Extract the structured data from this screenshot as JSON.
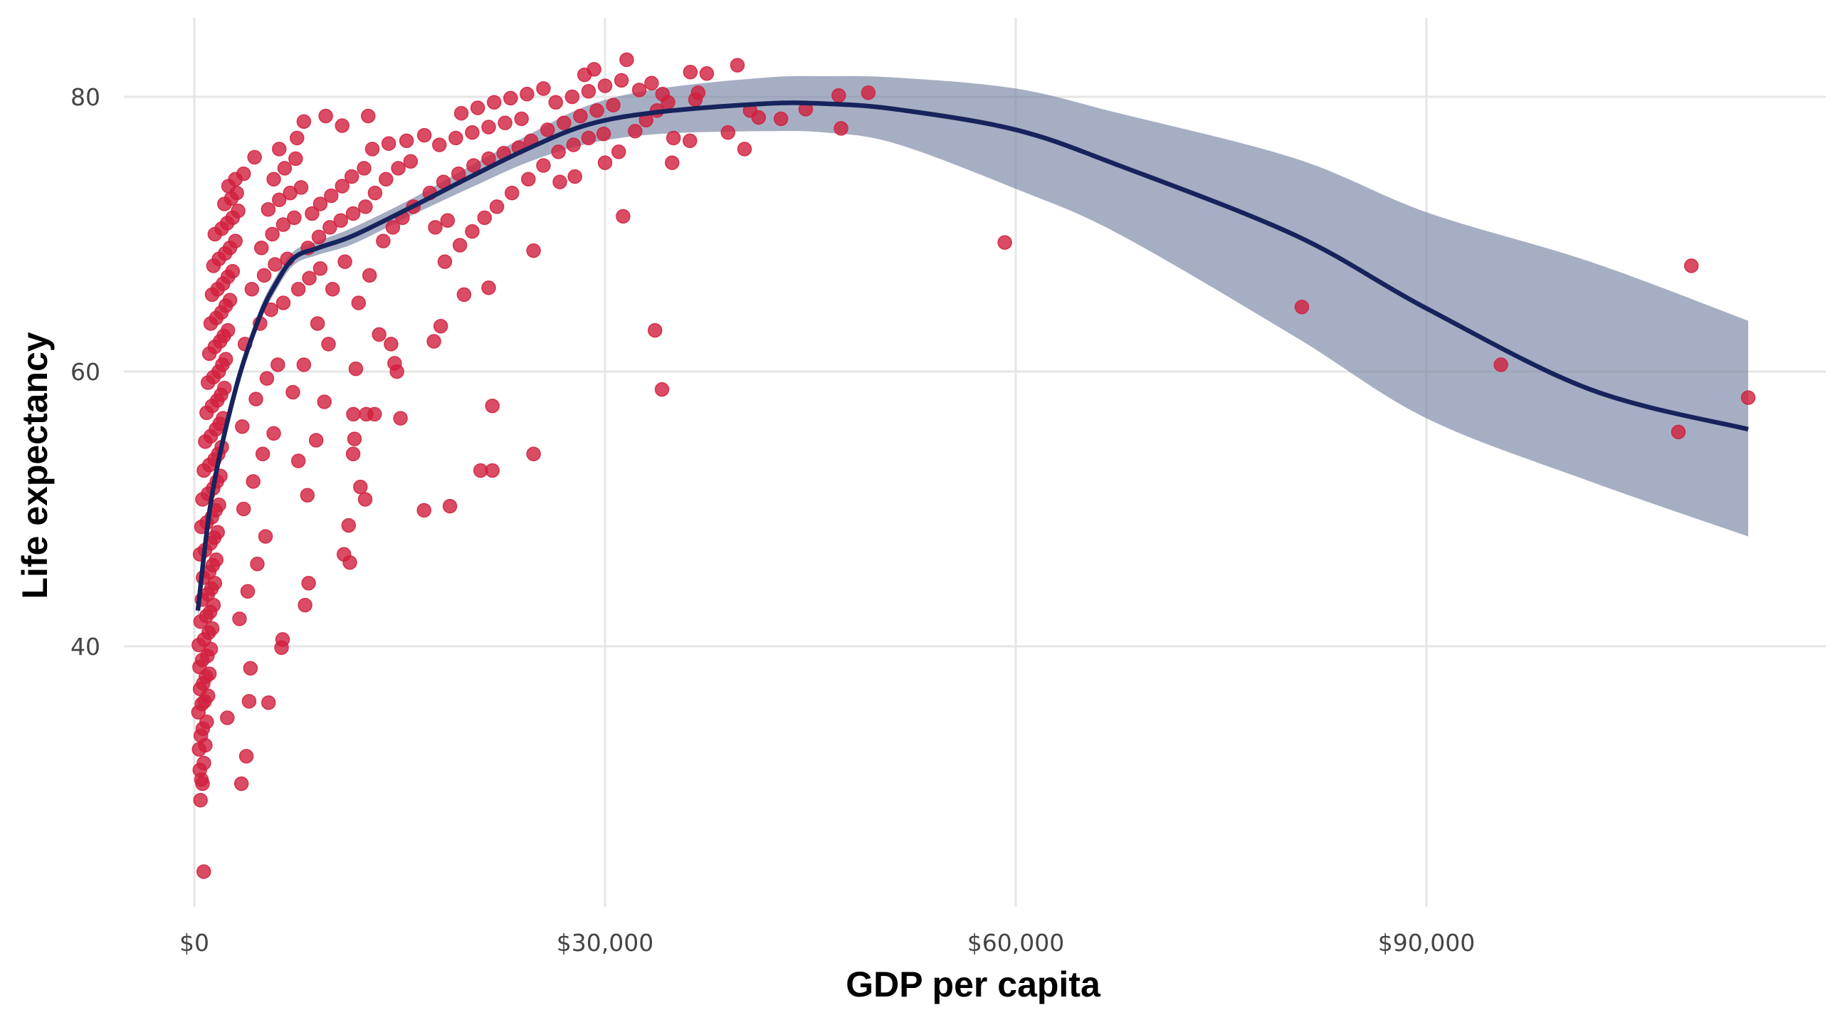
{
  "chart_data": {
    "type": "scatter",
    "title": "",
    "xlabel": "GDP per capita",
    "ylabel": "Life expectancy",
    "xlim": [
      -3500,
      120000
    ],
    "ylim": [
      19,
      85
    ],
    "grid": true,
    "x_ticks": [
      {
        "value": 0,
        "label": "$0"
      },
      {
        "value": 30000,
        "label": "$30,000"
      },
      {
        "value": 60000,
        "label": "$60,000"
      },
      {
        "value": 90000,
        "label": "$90,000"
      }
    ],
    "y_ticks": [
      {
        "value": 40,
        "label": "40"
      },
      {
        "value": 60,
        "label": "60"
      },
      {
        "value": 80,
        "label": "80"
      }
    ],
    "colors": {
      "points": "#D11F3D",
      "smooth_line": "#17235C",
      "smooth_band": "#7683A3",
      "grid": "#E6E6E6"
    },
    "points": [
      [
        690,
        23.6
      ],
      [
        450,
        28.8
      ],
      [
        600,
        30.0
      ],
      [
        520,
        30.3
      ],
      [
        400,
        31.0
      ],
      [
        700,
        31.5
      ],
      [
        350,
        32.5
      ],
      [
        800,
        32.8
      ],
      [
        480,
        33.5
      ],
      [
        620,
        34.0
      ],
      [
        900,
        34.5
      ],
      [
        300,
        35.2
      ],
      [
        550,
        35.8
      ],
      [
        750,
        36.0
      ],
      [
        1000,
        36.4
      ],
      [
        420,
        36.9
      ],
      [
        650,
        37.3
      ],
      [
        850,
        37.8
      ],
      [
        1100,
        38.0
      ],
      [
        380,
        38.5
      ],
      [
        580,
        39.0
      ],
      [
        950,
        39.3
      ],
      [
        1200,
        39.8
      ],
      [
        330,
        40.1
      ],
      [
        720,
        40.5
      ],
      [
        1050,
        41.0
      ],
      [
        1300,
        41.3
      ],
      [
        460,
        41.8
      ],
      [
        880,
        42.2
      ],
      [
        1150,
        42.5
      ],
      [
        1400,
        43.0
      ],
      [
        560,
        43.4
      ],
      [
        990,
        43.8
      ],
      [
        1250,
        44.2
      ],
      [
        1500,
        44.6
      ],
      [
        640,
        45.0
      ],
      [
        1080,
        45.4
      ],
      [
        1350,
        45.9
      ],
      [
        1600,
        46.3
      ],
      [
        420,
        46.7
      ],
      [
        780,
        47.0
      ],
      [
        1180,
        47.5
      ],
      [
        1450,
        47.9
      ],
      [
        1700,
        48.3
      ],
      [
        520,
        48.7
      ],
      [
        900,
        49.0
      ],
      [
        1280,
        49.4
      ],
      [
        1550,
        49.9
      ],
      [
        1800,
        50.3
      ],
      [
        600,
        50.7
      ],
      [
        1000,
        51.1
      ],
      [
        1380,
        51.5
      ],
      [
        1650,
        52.0
      ],
      [
        1900,
        52.4
      ],
      [
        700,
        52.8
      ],
      [
        1100,
        53.2
      ],
      [
        1480,
        53.6
      ],
      [
        1750,
        54.0
      ],
      [
        2000,
        54.5
      ],
      [
        800,
        54.9
      ],
      [
        1200,
        55.3
      ],
      [
        1580,
        55.8
      ],
      [
        1850,
        56.2
      ],
      [
        2100,
        56.6
      ],
      [
        900,
        57.0
      ],
      [
        1300,
        57.5
      ],
      [
        1680,
        57.9
      ],
      [
        1950,
        58.3
      ],
      [
        2200,
        58.8
      ],
      [
        1000,
        59.2
      ],
      [
        1400,
        59.6
      ],
      [
        1780,
        60.0
      ],
      [
        2050,
        60.5
      ],
      [
        2300,
        60.9
      ],
      [
        1100,
        61.3
      ],
      [
        1500,
        61.8
      ],
      [
        1880,
        62.2
      ],
      [
        2150,
        62.6
      ],
      [
        2450,
        63.0
      ],
      [
        1200,
        63.5
      ],
      [
        1600,
        63.9
      ],
      [
        1980,
        64.3
      ],
      [
        2300,
        64.8
      ],
      [
        2600,
        65.2
      ],
      [
        1300,
        65.6
      ],
      [
        1700,
        66.0
      ],
      [
        2100,
        66.4
      ],
      [
        2450,
        66.9
      ],
      [
        2800,
        67.3
      ],
      [
        1400,
        67.7
      ],
      [
        1800,
        68.2
      ],
      [
        2250,
        68.6
      ],
      [
        2600,
        69.0
      ],
      [
        3000,
        69.5
      ],
      [
        1500,
        70.0
      ],
      [
        2000,
        70.4
      ],
      [
        2400,
        70.8
      ],
      [
        2800,
        71.2
      ],
      [
        3200,
        71.7
      ],
      [
        2200,
        72.2
      ],
      [
        2700,
        72.6
      ],
      [
        3100,
        73.0
      ],
      [
        2500,
        73.5
      ],
      [
        3000,
        74.0
      ],
      [
        3600,
        74.4
      ],
      [
        4400,
        75.6
      ],
      [
        4000,
        36.0
      ],
      [
        4100,
        38.4
      ],
      [
        3800,
        32.0
      ],
      [
        3440,
        30.0
      ],
      [
        2410,
        34.8
      ],
      [
        5420,
        35.9
      ],
      [
        6450,
        40.5
      ],
      [
        6370,
        39.9
      ],
      [
        3300,
        42.0
      ],
      [
        3900,
        44.0
      ],
      [
        4600,
        46.0
      ],
      [
        5200,
        48.0
      ],
      [
        3600,
        50.0
      ],
      [
        4300,
        52.0
      ],
      [
        5000,
        54.0
      ],
      [
        5800,
        55.5
      ],
      [
        3500,
        56.0
      ],
      [
        4500,
        58.0
      ],
      [
        5300,
        59.5
      ],
      [
        6100,
        60.5
      ],
      [
        3700,
        62.0
      ],
      [
        4800,
        63.5
      ],
      [
        5600,
        64.5
      ],
      [
        6500,
        65.0
      ],
      [
        4200,
        66.0
      ],
      [
        5100,
        67.0
      ],
      [
        5900,
        67.8
      ],
      [
        6800,
        68.2
      ],
      [
        4900,
        69.0
      ],
      [
        5700,
        70.0
      ],
      [
        6500,
        70.7
      ],
      [
        7300,
        71.2
      ],
      [
        5400,
        71.8
      ],
      [
        6200,
        72.5
      ],
      [
        7000,
        73.0
      ],
      [
        7800,
        73.4
      ],
      [
        5800,
        74.0
      ],
      [
        6600,
        74.8
      ],
      [
        7400,
        75.5
      ],
      [
        6200,
        76.2
      ],
      [
        7500,
        77.0
      ],
      [
        8000,
        78.2
      ],
      [
        9600,
        78.6
      ],
      [
        10800,
        77.9
      ],
      [
        8600,
        71.5
      ],
      [
        9200,
        72.2
      ],
      [
        10000,
        72.8
      ],
      [
        10800,
        73.5
      ],
      [
        11500,
        74.2
      ],
      [
        12400,
        74.8
      ],
      [
        8300,
        69.0
      ],
      [
        9100,
        69.8
      ],
      [
        9900,
        70.5
      ],
      [
        10700,
        71.0
      ],
      [
        11600,
        71.5
      ],
      [
        12500,
        72.0
      ],
      [
        7600,
        66.0
      ],
      [
        8400,
        66.8
      ],
      [
        9200,
        67.5
      ],
      [
        10100,
        66.0
      ],
      [
        11000,
        68.0
      ],
      [
        8260,
        51.0
      ],
      [
        8350,
        44.6
      ],
      [
        8090,
        43.0
      ],
      [
        7600,
        53.5
      ],
      [
        8900,
        55.0
      ],
      [
        9500,
        57.8
      ],
      [
        7200,
        58.5
      ],
      [
        8000,
        60.5
      ],
      [
        9800,
        62.0
      ],
      [
        9000,
        63.5
      ],
      [
        11270,
        48.8
      ],
      [
        10930,
        46.7
      ],
      [
        11360,
        46.1
      ],
      [
        12480,
        50.7
      ],
      [
        12130,
        51.6
      ],
      [
        11620,
        56.9
      ],
      [
        11700,
        55.1
      ],
      [
        11600,
        54.0
      ],
      [
        12560,
        56.9
      ],
      [
        13170,
        56.9
      ],
      [
        11800,
        60.2
      ],
      [
        12000,
        65.0
      ],
      [
        12800,
        67.0
      ],
      [
        13500,
        62.7
      ],
      [
        14370,
        62.0
      ],
      [
        14630,
        60.6
      ],
      [
        14800,
        60.0
      ],
      [
        15060,
        56.6
      ],
      [
        13800,
        69.5
      ],
      [
        14500,
        70.5
      ],
      [
        15200,
        71.2
      ],
      [
        16000,
        72.0
      ],
      [
        13200,
        73.0
      ],
      [
        14000,
        74.0
      ],
      [
        14900,
        74.8
      ],
      [
        15800,
        75.3
      ],
      [
        13000,
        76.2
      ],
      [
        14200,
        76.6
      ],
      [
        15500,
        76.8
      ],
      [
        16800,
        77.2
      ],
      [
        12700,
        78.6
      ],
      [
        16780,
        49.9
      ],
      [
        18670,
        50.2
      ],
      [
        17500,
        62.2
      ],
      [
        18000,
        63.3
      ],
      [
        18300,
        68.0
      ],
      [
        17600,
        70.5
      ],
      [
        18500,
        71.0
      ],
      [
        19400,
        69.2
      ],
      [
        20300,
        70.2
      ],
      [
        21200,
        71.2
      ],
      [
        22100,
        72.0
      ],
      [
        17200,
        73.0
      ],
      [
        18200,
        73.8
      ],
      [
        19300,
        74.4
      ],
      [
        20400,
        75.0
      ],
      [
        21500,
        75.5
      ],
      [
        22600,
        75.9
      ],
      [
        23700,
        76.3
      ],
      [
        17900,
        76.5
      ],
      [
        19100,
        77.0
      ],
      [
        20300,
        77.4
      ],
      [
        21500,
        77.8
      ],
      [
        22700,
        78.1
      ],
      [
        23900,
        78.4
      ],
      [
        19500,
        78.8
      ],
      [
        20700,
        79.2
      ],
      [
        21900,
        79.6
      ],
      [
        23100,
        79.9
      ],
      [
        24300,
        80.2
      ],
      [
        25500,
        80.6
      ],
      [
        20910,
        52.8
      ],
      [
        21770,
        52.8
      ],
      [
        21770,
        57.5
      ],
      [
        19700,
        65.6
      ],
      [
        21500,
        66.1
      ],
      [
        24780,
        68.8
      ],
      [
        24780,
        54.0
      ],
      [
        23200,
        73.0
      ],
      [
        24400,
        74.0
      ],
      [
        25500,
        75.0
      ],
      [
        26600,
        76.0
      ],
      [
        27700,
        76.5
      ],
      [
        28800,
        77.0
      ],
      [
        29900,
        77.3
      ],
      [
        24600,
        76.8
      ],
      [
        25800,
        77.6
      ],
      [
        27000,
        78.1
      ],
      [
        28200,
        78.6
      ],
      [
        29400,
        79.0
      ],
      [
        30600,
        79.4
      ],
      [
        26400,
        79.6
      ],
      [
        27600,
        80.0
      ],
      [
        28800,
        80.4
      ],
      [
        30000,
        80.8
      ],
      [
        31200,
        81.2
      ],
      [
        28500,
        81.6
      ],
      [
        29200,
        82.0
      ],
      [
        27800,
        74.2
      ],
      [
        26700,
        73.8
      ],
      [
        30000,
        75.2
      ],
      [
        31000,
        76.0
      ],
      [
        31320,
        71.3
      ],
      [
        31580,
        82.7
      ],
      [
        32200,
        77.5
      ],
      [
        33000,
        78.3
      ],
      [
        33800,
        79.0
      ],
      [
        34600,
        79.6
      ],
      [
        32500,
        80.5
      ],
      [
        33400,
        81.0
      ],
      [
        34200,
        80.2
      ],
      [
        35000,
        77.0
      ],
      [
        34900,
        75.2
      ],
      [
        36200,
        76.8
      ],
      [
        36600,
        79.8
      ],
      [
        33650,
        63.0
      ],
      [
        34160,
        58.7
      ],
      [
        36230,
        81.8
      ],
      [
        37430,
        81.7
      ],
      [
        36800,
        80.3
      ],
      [
        38980,
        77.4
      ],
      [
        39670,
        82.3
      ],
      [
        40190,
        76.2
      ],
      [
        41220,
        78.5
      ],
      [
        40600,
        79.0
      ],
      [
        42850,
        78.4
      ],
      [
        44660,
        79.1
      ],
      [
        47070,
        80.1
      ],
      [
        47240,
        77.7
      ],
      [
        49230,
        80.3
      ],
      [
        59200,
        69.4
      ],
      [
        80900,
        64.7
      ],
      [
        95440,
        60.5
      ],
      [
        108400,
        55.6
      ],
      [
        109350,
        67.7
      ],
      [
        113500,
        58.1
      ]
    ],
    "smooth": {
      "method": "loess",
      "x": [
        258,
        1290,
        3010,
        4730,
        6020,
        7310,
        9040,
        11620,
        15920,
        20220,
        24530,
        28830,
        33990,
        41730,
        46040,
        51200,
        60000,
        67550,
        80460,
        90000,
        101960,
        113500
      ],
      "fit": [
        42.6,
        51.0,
        58.7,
        63.9,
        66.5,
        68.3,
        69.0,
        69.9,
        72.0,
        74.2,
        76.3,
        78.0,
        78.9,
        79.5,
        79.5,
        79.1,
        77.6,
        75.0,
        69.9,
        64.6,
        58.7,
        55.8
      ],
      "lower": [
        41.9,
        50.4,
        58.2,
        63.4,
        66.0,
        67.8,
        68.5,
        69.3,
        71.4,
        73.4,
        75.3,
        76.6,
        77.3,
        77.5,
        77.4,
        76.6,
        73.3,
        70.0,
        62.5,
        56.6,
        52.0,
        48.0
      ],
      "upper": [
        43.3,
        51.6,
        59.2,
        64.4,
        67.0,
        68.8,
        69.5,
        70.5,
        72.6,
        75.0,
        77.3,
        79.4,
        80.6,
        81.4,
        81.5,
        81.4,
        80.6,
        78.8,
        75.5,
        71.6,
        68.0,
        63.7
      ]
    }
  }
}
